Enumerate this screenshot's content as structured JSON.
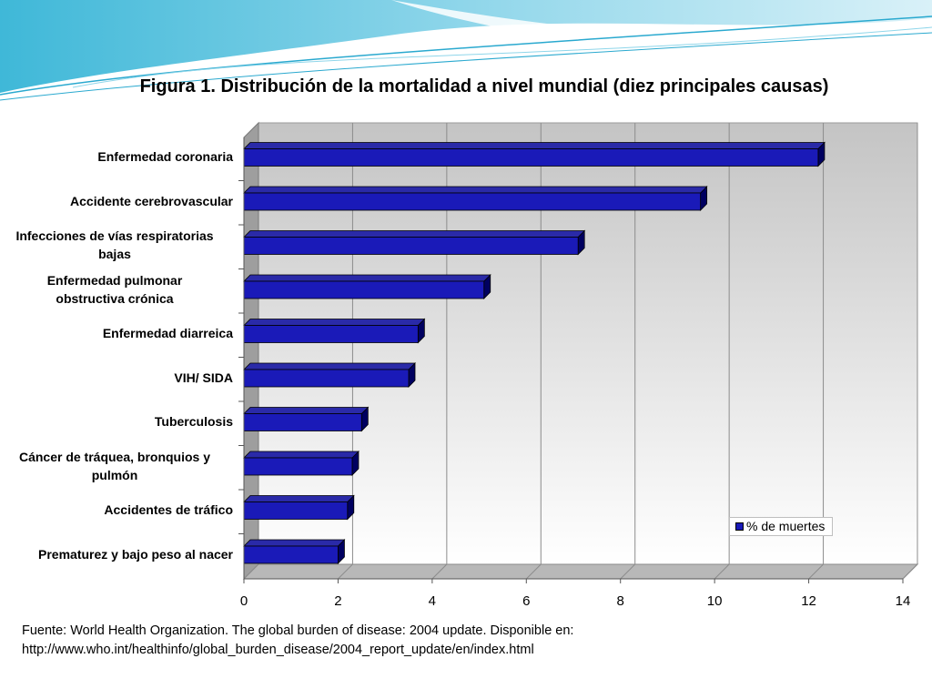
{
  "title": "Figura 1. Distribución de la mortalidad a nivel mundial (diez principales causas)",
  "footnote": {
    "line1": "Fuente: World Health Organization. The global burden of disease: 2004 update. Disponible en:",
    "line2": "http://www.who.int/healthinfo/global_burden_disease/2004_report_update/en/index.html"
  },
  "colors": {
    "bar": "#1a1ab8",
    "bar_dark": "#000060",
    "accent": "#3fb8d8"
  },
  "chart_data": {
    "type": "bar",
    "orientation": "horizontal",
    "style": "3d",
    "title": "",
    "xlabel": "",
    "ylabel": "",
    "xlim": [
      0,
      14
    ],
    "x_ticks": [
      "0",
      "2",
      "4",
      "6",
      "8",
      "10",
      "12",
      "14"
    ],
    "grid": true,
    "legend_position": "bottom-right",
    "categories": [
      [
        "Enfermedad coronaria"
      ],
      [
        "Accidente cerebrovascular"
      ],
      [
        "Infecciones de vías respiratorias",
        "bajas"
      ],
      [
        "Enfermedad pulmonar",
        "obstructiva crónica"
      ],
      [
        "Enfermedad diarreica"
      ],
      [
        "VIH/ SIDA"
      ],
      [
        "Tuberculosis"
      ],
      [
        "Cáncer de tráquea, bronquios y",
        "pulmón"
      ],
      [
        "Accidentes de tráfico"
      ],
      [
        "Prematurez y bajo peso al nacer"
      ]
    ],
    "series": [
      {
        "name": "% de muertes",
        "values": [
          12.2,
          9.7,
          7.1,
          5.1,
          3.7,
          3.5,
          2.5,
          2.3,
          2.2,
          2.0
        ]
      }
    ]
  }
}
